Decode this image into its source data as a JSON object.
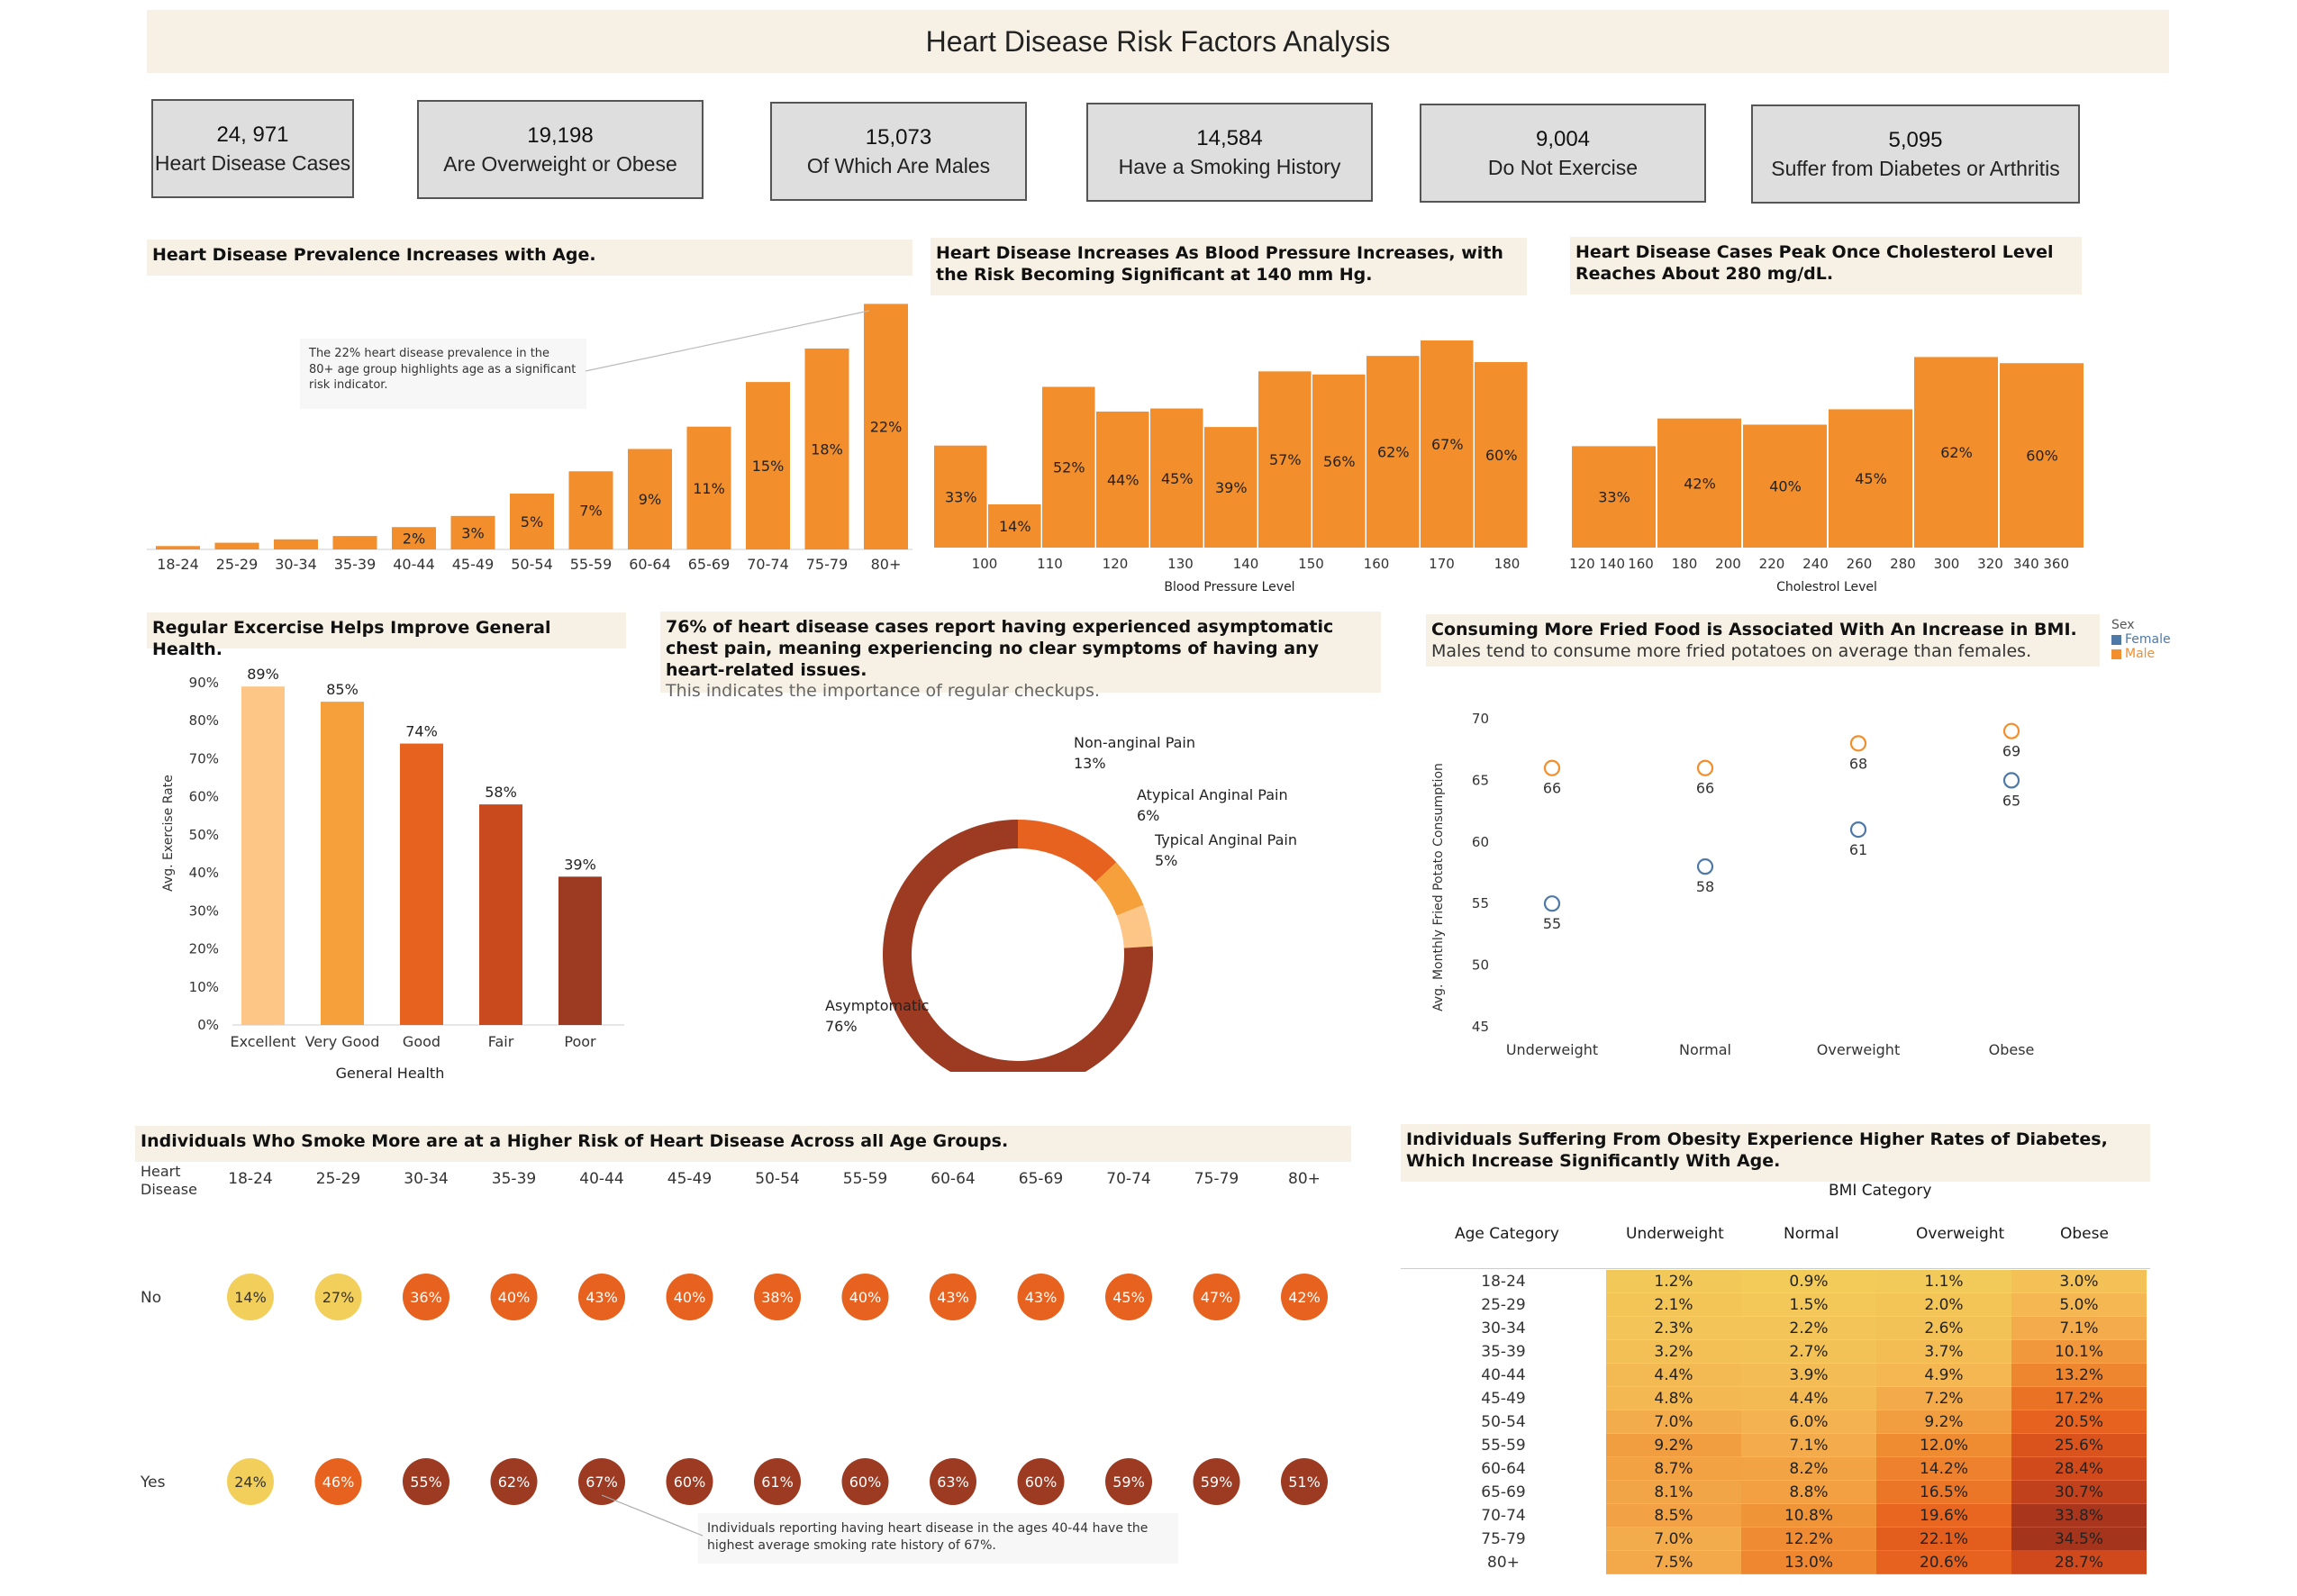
{
  "title": "Heart Disease Risk Factors Analysis",
  "kpis": [
    {
      "value": "24, 971",
      "label": "Heart Disease Cases"
    },
    {
      "value": "19,198",
      "label": "Are Overweight or Obese"
    },
    {
      "value": "15,073",
      "label": "Of Which Are Males"
    },
    {
      "value": "14,584",
      "label": "Have a Smoking History"
    },
    {
      "value": "9,004",
      "label": "Do Not Exercise"
    },
    {
      "value": "5,095",
      "label": "Suffer from Diabetes or Arthritis"
    }
  ],
  "colors": {
    "orange": "#f28e2b",
    "light": "#fdc686",
    "mid": "#f5a03a",
    "dark": "#e8621f",
    "rust": "#c94a1c",
    "brown": "#9c3a22",
    "yellow": "#f2cf5b",
    "female": "#4e79a7",
    "band": "#f6f1e4"
  },
  "age_chart": {
    "title": "Heart Disease Prevalence Increases with Age.",
    "annotation": "The 22% heart disease prevalence in the 80+ age group  highlights age as a significant risk indicator.",
    "chart_data": {
      "type": "bar",
      "categories": [
        "18-24",
        "25-29",
        "30-34",
        "35-39",
        "40-44",
        "45-49",
        "50-54",
        "55-59",
        "60-64",
        "65-69",
        "70-74",
        "75-79",
        "80+"
      ],
      "values": [
        0.3,
        0.6,
        0.9,
        1.2,
        2,
        3,
        5,
        7,
        9,
        11,
        15,
        18,
        22
      ],
      "labels": [
        "",
        "",
        "",
        "",
        "2%",
        "3%",
        "5%",
        "7%",
        "9%",
        "11%",
        "15%",
        "18%",
        "22%"
      ],
      "ylim": [
        0,
        23
      ]
    }
  },
  "bp_chart": {
    "title": "Heart Disease Increases As Blood Pressure Increases, with the Risk Becoming Significant at 140 mm Hg.",
    "chart_data": {
      "type": "bar",
      "x_ticks": [
        "100",
        "110",
        "120",
        "130",
        "140",
        "150",
        "160",
        "170",
        "180"
      ],
      "values": [
        33,
        14,
        52,
        44,
        45,
        39,
        57,
        56,
        62,
        67,
        60
      ],
      "labels": [
        "33%",
        "14%",
        "52%",
        "44%",
        "45%",
        "39%",
        "57%",
        "56%",
        "62%",
        "67%",
        "60%"
      ],
      "xlabel": "Blood Pressure Level",
      "ylim": [
        0,
        70
      ]
    }
  },
  "chol_chart": {
    "title": "Heart Disease Cases Peak Once Cholesterol Level Reaches About 280 mg/dL.",
    "chart_data": {
      "type": "bar",
      "x_ticks": [
        "120 140",
        "160",
        "180",
        "200",
        "220",
        "240",
        "260",
        "280",
        "300",
        "320",
        "340 360"
      ],
      "values": [
        33,
        42,
        40,
        45,
        62,
        60
      ],
      "labels": [
        "33%",
        "42%",
        "40%",
        "45%",
        "62%",
        "60%"
      ],
      "xlabel": "Cholestrol Level",
      "ylim": [
        0,
        70
      ]
    }
  },
  "exercise_chart": {
    "title": "Regular Excercise Helps Improve General Health.",
    "chart_data": {
      "type": "bar",
      "categories": [
        "Excellent",
        "Very Good",
        "Good",
        "Fair",
        "Poor"
      ],
      "values": [
        89,
        85,
        74,
        58,
        39
      ],
      "labels": [
        "89%",
        "85%",
        "74%",
        "58%",
        "39%"
      ],
      "y_ticks": [
        "0%",
        "10%",
        "20%",
        "30%",
        "40%",
        "50%",
        "60%",
        "70%",
        "80%",
        "90%"
      ],
      "xlabel": "General Health",
      "ylabel": "Avg. Exercise Rate",
      "ylim": [
        0,
        90
      ]
    }
  },
  "pain_chart": {
    "title": "76% of heart disease cases report having experienced asymptomatic chest pain, meaning experiencing no clear symptoms of having any heart-related issues.",
    "subtitle": "This indicates the importance of regular checkups.",
    "chart_data": {
      "type": "pie",
      "slices": [
        {
          "name": "Non-anginal Pain",
          "value": 13,
          "label": "13%"
        },
        {
          "name": "Atypical Anginal Pain",
          "value": 6,
          "label": "6%"
        },
        {
          "name": "Typical Anginal Pain",
          "value": 5,
          "label": "5%"
        },
        {
          "name": "Asymptomatic",
          "value": 76,
          "label": "76%"
        }
      ]
    }
  },
  "fried_chart": {
    "title": "Consuming More Fried Food is Associated With An Increase in BMI.",
    "subtitle": "Males tend to consume more fried potatoes on average than females.",
    "legend_title": "Sex",
    "chart_data": {
      "type": "scatter",
      "categories": [
        "Underweight",
        "Normal",
        "Overweight",
        "Obese"
      ],
      "series": [
        {
          "name": "Female",
          "values": [
            55,
            58,
            61,
            65
          ]
        },
        {
          "name": "Male",
          "values": [
            66,
            66,
            68,
            69
          ]
        }
      ],
      "y_ticks": [
        "45",
        "50",
        "55",
        "60",
        "65",
        "70"
      ],
      "ylabel": "Avg. Monthly Fried Potato Consumption",
      "ylim": [
        45,
        72
      ]
    }
  },
  "smoke_chart": {
    "title": "Individuals Who Smoke More are at a Higher Risk of Heart Disease Across all Age Groups.",
    "row_header": "Heart Disease",
    "annotation": "Individuals reporting having heart disease in the ages 40-44 have the highest average smoking rate history of 67%.",
    "chart_data": {
      "type": "heatmap",
      "columns": [
        "18-24",
        "25-29",
        "30-34",
        "35-39",
        "40-44",
        "45-49",
        "50-54",
        "55-59",
        "60-64",
        "65-69",
        "70-74",
        "75-79",
        "80+"
      ],
      "rows": [
        {
          "name": "No",
          "values": [
            14,
            27,
            36,
            40,
            43,
            40,
            38,
            40,
            43,
            43,
            45,
            47,
            42
          ],
          "labels": [
            "14%",
            "27%",
            "36%",
            "40%",
            "43%",
            "40%",
            "38%",
            "40%",
            "43%",
            "43%",
            "45%",
            "47%",
            "42%"
          ]
        },
        {
          "name": "Yes",
          "values": [
            24,
            46,
            55,
            62,
            67,
            60,
            61,
            60,
            63,
            60,
            59,
            59,
            51
          ],
          "labels": [
            "24%",
            "46%",
            "55%",
            "62%",
            "67%",
            "60%",
            "61%",
            "60%",
            "63%",
            "60%",
            "59%",
            "59%",
            "51%"
          ]
        }
      ]
    }
  },
  "diabetes_table": {
    "title": "Individuals Suffering From Obesity Experience Higher Rates of Diabetes, Which Increase Significantly With Age.",
    "group_header": "BMI Category",
    "row_header": "Age Category",
    "chart_data": {
      "type": "table",
      "columns": [
        "Underweight",
        "Normal",
        "Overweight",
        "Obese"
      ],
      "rows": [
        {
          "age": "18-24",
          "values": [
            "1.2%",
            "0.9%",
            "1.1%",
            "3.0%"
          ],
          "num": [
            1.2,
            0.9,
            1.1,
            3.0
          ]
        },
        {
          "age": "25-29",
          "values": [
            "2.1%",
            "1.5%",
            "2.0%",
            "5.0%"
          ],
          "num": [
            2.1,
            1.5,
            2.0,
            5.0
          ]
        },
        {
          "age": "30-34",
          "values": [
            "2.3%",
            "2.2%",
            "2.6%",
            "7.1%"
          ],
          "num": [
            2.3,
            2.2,
            2.6,
            7.1
          ]
        },
        {
          "age": "35-39",
          "values": [
            "3.2%",
            "2.7%",
            "3.7%",
            "10.1%"
          ],
          "num": [
            3.2,
            2.7,
            3.7,
            10.1
          ]
        },
        {
          "age": "40-44",
          "values": [
            "4.4%",
            "3.9%",
            "4.9%",
            "13.2%"
          ],
          "num": [
            4.4,
            3.9,
            4.9,
            13.2
          ]
        },
        {
          "age": "45-49",
          "values": [
            "4.8%",
            "4.4%",
            "7.2%",
            "17.2%"
          ],
          "num": [
            4.8,
            4.4,
            7.2,
            17.2
          ]
        },
        {
          "age": "50-54",
          "values": [
            "7.0%",
            "6.0%",
            "9.2%",
            "20.5%"
          ],
          "num": [
            7.0,
            6.0,
            9.2,
            20.5
          ]
        },
        {
          "age": "55-59",
          "values": [
            "9.2%",
            "7.1%",
            "12.0%",
            "25.6%"
          ],
          "num": [
            9.2,
            7.1,
            12.0,
            25.6
          ]
        },
        {
          "age": "60-64",
          "values": [
            "8.7%",
            "8.2%",
            "14.2%",
            "28.4%"
          ],
          "num": [
            8.7,
            8.2,
            14.2,
            28.4
          ]
        },
        {
          "age": "65-69",
          "values": [
            "8.1%",
            "8.8%",
            "16.5%",
            "30.7%"
          ],
          "num": [
            8.1,
            8.8,
            16.5,
            30.7
          ]
        },
        {
          "age": "70-74",
          "values": [
            "8.5%",
            "10.8%",
            "19.6%",
            "33.8%"
          ],
          "num": [
            8.5,
            10.8,
            19.6,
            33.8
          ]
        },
        {
          "age": "75-79",
          "values": [
            "7.0%",
            "12.2%",
            "22.1%",
            "34.5%"
          ],
          "num": [
            7.0,
            12.2,
            22.1,
            34.5
          ]
        },
        {
          "age": "80+",
          "values": [
            "7.5%",
            "13.0%",
            "20.6%",
            "28.7%"
          ],
          "num": [
            7.5,
            13.0,
            20.6,
            28.7
          ]
        }
      ]
    }
  }
}
